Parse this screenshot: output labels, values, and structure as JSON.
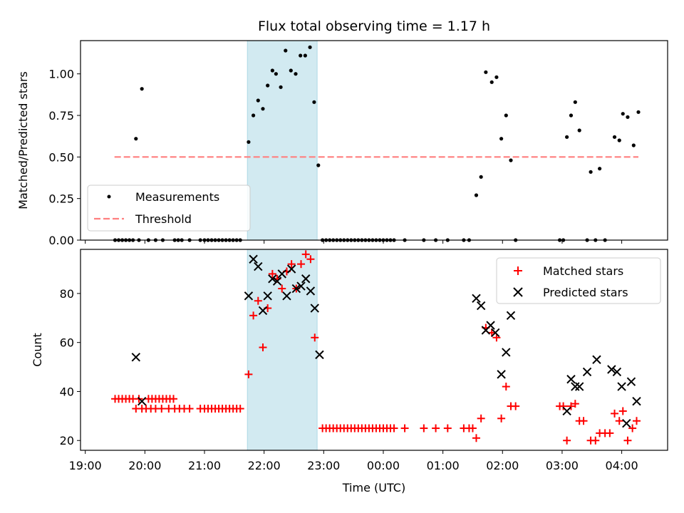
{
  "chart_data": {
    "title": "Flux total observing time = 1.17 h",
    "xlabel": "Time (UTC)",
    "x_units": "hours since 18:00 UTC",
    "xlim": [
      0.92,
      10.77
    ],
    "x_ticks": [
      {
        "x": 1,
        "label": "19:00"
      },
      {
        "x": 2,
        "label": "20:00"
      },
      {
        "x": 3,
        "label": "21:00"
      },
      {
        "x": 4,
        "label": "22:00"
      },
      {
        "x": 5,
        "label": "23:00"
      },
      {
        "x": 6,
        "label": "00:00"
      },
      {
        "x": 7,
        "label": "01:00"
      },
      {
        "x": 8,
        "label": "02:00"
      },
      {
        "x": 9,
        "label": "03:00"
      },
      {
        "x": 10,
        "label": "04:00"
      }
    ],
    "observing_window": {
      "start": 3.72,
      "end": 4.89,
      "color": "#add8e6"
    },
    "top": {
      "type": "scatter",
      "ylabel": "Matched/Predicted stars",
      "ylim": [
        0,
        1.2
      ],
      "y_ticks": [
        "0.00",
        "0.25",
        "0.50",
        "0.75",
        "1.00"
      ],
      "y_tick_values": [
        0,
        0.25,
        0.5,
        0.75,
        1.0
      ],
      "legend": {
        "position": "lower-left",
        "entries": [
          "Measurements",
          "Threshold"
        ]
      },
      "threshold": {
        "name": "Threshold",
        "value": 0.5,
        "x_range": [
          1.49,
          10.28
        ],
        "color": "#ff7f7f"
      },
      "series": [
        {
          "name": "Measurements",
          "color": "#000000",
          "points": [
            [
              1.5,
              0
            ],
            [
              1.56,
              0
            ],
            [
              1.62,
              0
            ],
            [
              1.68,
              0
            ],
            [
              1.74,
              0
            ],
            [
              1.8,
              0
            ],
            [
              1.9,
              0
            ],
            [
              2.06,
              0
            ],
            [
              2.18,
              0
            ],
            [
              2.3,
              0
            ],
            [
              2.5,
              0
            ],
            [
              2.56,
              0
            ],
            [
              2.62,
              0
            ],
            [
              2.75,
              0
            ],
            [
              2.93,
              0
            ],
            [
              3.0,
              0
            ],
            [
              3.06,
              0
            ],
            [
              3.12,
              0
            ],
            [
              3.18,
              0
            ],
            [
              3.24,
              0
            ],
            [
              3.3,
              0
            ],
            [
              3.36,
              0
            ],
            [
              3.42,
              0
            ],
            [
              3.48,
              0
            ],
            [
              3.54,
              0
            ],
            [
              3.6,
              0
            ],
            [
              1.85,
              0.61
            ],
            [
              1.95,
              0.91
            ],
            [
              3.74,
              0.59
            ],
            [
              3.82,
              0.75
            ],
            [
              3.9,
              0.84
            ],
            [
              3.98,
              0.79
            ],
            [
              4.06,
              0.93
            ],
            [
              4.14,
              1.02
            ],
            [
              4.2,
              1.0
            ],
            [
              4.28,
              0.92
            ],
            [
              4.36,
              1.14
            ],
            [
              4.45,
              1.02
            ],
            [
              4.53,
              1.0
            ],
            [
              4.61,
              1.11
            ],
            [
              4.69,
              1.11
            ],
            [
              4.77,
              1.16
            ],
            [
              4.84,
              0.83
            ],
            [
              4.91,
              0.45
            ],
            [
              4.98,
              0
            ],
            [
              5.04,
              0
            ],
            [
              5.1,
              0
            ],
            [
              5.16,
              0
            ],
            [
              5.22,
              0
            ],
            [
              5.28,
              0
            ],
            [
              5.34,
              0
            ],
            [
              5.4,
              0
            ],
            [
              5.46,
              0
            ],
            [
              5.52,
              0
            ],
            [
              5.58,
              0
            ],
            [
              5.64,
              0
            ],
            [
              5.7,
              0
            ],
            [
              5.76,
              0
            ],
            [
              5.82,
              0
            ],
            [
              5.88,
              0
            ],
            [
              5.94,
              0
            ],
            [
              6.0,
              0
            ],
            [
              6.06,
              0
            ],
            [
              6.12,
              0
            ],
            [
              6.18,
              0
            ],
            [
              6.36,
              0
            ],
            [
              6.68,
              0
            ],
            [
              6.88,
              0
            ],
            [
              7.08,
              0
            ],
            [
              7.35,
              0
            ],
            [
              7.44,
              0
            ],
            [
              7.56,
              0.27
            ],
            [
              7.64,
              0.38
            ],
            [
              7.72,
              1.01
            ],
            [
              7.82,
              0.95
            ],
            [
              7.9,
              0.98
            ],
            [
              7.98,
              0.61
            ],
            [
              8.06,
              0.75
            ],
            [
              8.14,
              0.48
            ],
            [
              8.22,
              0
            ],
            [
              8.96,
              0
            ],
            [
              9.02,
              0
            ],
            [
              9.08,
              0.62
            ],
            [
              9.15,
              0.75
            ],
            [
              9.22,
              0.83
            ],
            [
              9.29,
              0.66
            ],
            [
              9.42,
              0
            ],
            [
              9.48,
              0.41
            ],
            [
              9.56,
              0
            ],
            [
              9.63,
              0.43
            ],
            [
              9.72,
              0
            ],
            [
              9.88,
              0.62
            ],
            [
              9.96,
              0.6
            ],
            [
              10.02,
              0.76
            ],
            [
              10.1,
              0.74
            ],
            [
              10.2,
              0.57
            ],
            [
              10.28,
              0.77
            ]
          ]
        }
      ]
    },
    "bottom": {
      "type": "scatter",
      "ylabel": "Count",
      "ylim": [
        16,
        98
      ],
      "y_ticks": [
        "20",
        "40",
        "60",
        "80"
      ],
      "y_tick_values": [
        20,
        40,
        60,
        80
      ],
      "legend": {
        "position": "upper-right",
        "entries": [
          "Matched stars",
          "Predicted stars"
        ]
      },
      "series": [
        {
          "name": "Matched stars",
          "marker": "+",
          "color": "#ff0000",
          "points": [
            [
              1.5,
              37
            ],
            [
              1.56,
              37
            ],
            [
              1.62,
              37
            ],
            [
              1.68,
              37
            ],
            [
              1.74,
              37
            ],
            [
              1.8,
              37
            ],
            [
              1.9,
              37
            ],
            [
              2.06,
              37
            ],
            [
              2.12,
              37
            ],
            [
              2.18,
              37
            ],
            [
              2.24,
              37
            ],
            [
              2.3,
              37
            ],
            [
              2.36,
              37
            ],
            [
              2.42,
              37
            ],
            [
              2.48,
              37
            ],
            [
              1.85,
              33
            ],
            [
              1.95,
              33
            ],
            [
              2.02,
              33
            ],
            [
              2.1,
              33
            ],
            [
              2.18,
              33
            ],
            [
              2.28,
              33
            ],
            [
              2.4,
              33
            ],
            [
              2.5,
              33
            ],
            [
              2.58,
              33
            ],
            [
              2.66,
              33
            ],
            [
              2.75,
              33
            ],
            [
              2.93,
              33
            ],
            [
              3.0,
              33
            ],
            [
              3.06,
              33
            ],
            [
              3.12,
              33
            ],
            [
              3.18,
              33
            ],
            [
              3.24,
              33
            ],
            [
              3.3,
              33
            ],
            [
              3.36,
              33
            ],
            [
              3.42,
              33
            ],
            [
              3.48,
              33
            ],
            [
              3.54,
              33
            ],
            [
              3.6,
              33
            ],
            [
              3.74,
              47
            ],
            [
              3.82,
              71
            ],
            [
              3.9,
              77
            ],
            [
              3.98,
              58
            ],
            [
              4.06,
              74
            ],
            [
              4.14,
              88
            ],
            [
              4.22,
              86
            ],
            [
              4.3,
              82
            ],
            [
              4.38,
              89
            ],
            [
              4.46,
              92
            ],
            [
              4.54,
              82
            ],
            [
              4.62,
              92
            ],
            [
              4.7,
              96
            ],
            [
              4.78,
              94
            ],
            [
              4.85,
              62
            ],
            [
              4.98,
              25
            ],
            [
              5.04,
              25
            ],
            [
              5.1,
              25
            ],
            [
              5.16,
              25
            ],
            [
              5.22,
              25
            ],
            [
              5.28,
              25
            ],
            [
              5.34,
              25
            ],
            [
              5.4,
              25
            ],
            [
              5.46,
              25
            ],
            [
              5.52,
              25
            ],
            [
              5.58,
              25
            ],
            [
              5.64,
              25
            ],
            [
              5.7,
              25
            ],
            [
              5.76,
              25
            ],
            [
              5.82,
              25
            ],
            [
              5.88,
              25
            ],
            [
              5.94,
              25
            ],
            [
              6.0,
              25
            ],
            [
              6.06,
              25
            ],
            [
              6.12,
              25
            ],
            [
              6.18,
              25
            ],
            [
              6.36,
              25
            ],
            [
              6.68,
              25
            ],
            [
              6.88,
              25
            ],
            [
              7.08,
              25
            ],
            [
              7.35,
              25
            ],
            [
              7.44,
              25
            ],
            [
              7.5,
              25
            ],
            [
              7.56,
              21
            ],
            [
              7.64,
              29
            ],
            [
              7.72,
              66
            ],
            [
              7.82,
              64
            ],
            [
              7.9,
              62
            ],
            [
              7.98,
              29
            ],
            [
              8.06,
              42
            ],
            [
              8.14,
              34
            ],
            [
              8.22,
              34
            ],
            [
              8.96,
              34
            ],
            [
              9.02,
              34
            ],
            [
              9.08,
              20
            ],
            [
              9.15,
              34
            ],
            [
              9.22,
              35
            ],
            [
              9.29,
              28
            ],
            [
              9.36,
              28
            ],
            [
              9.48,
              20
            ],
            [
              9.56,
              20
            ],
            [
              9.63,
              23
            ],
            [
              9.72,
              23
            ],
            [
              9.8,
              23
            ],
            [
              9.88,
              31
            ],
            [
              9.96,
              28
            ],
            [
              10.02,
              32
            ],
            [
              10.1,
              20
            ],
            [
              10.18,
              25
            ],
            [
              10.25,
              28
            ]
          ]
        },
        {
          "name": "Predicted stars",
          "marker": "x",
          "color": "#000000",
          "points": [
            [
              1.85,
              54
            ],
            [
              1.95,
              36
            ],
            [
              3.74,
              79
            ],
            [
              3.82,
              94
            ],
            [
              3.9,
              91
            ],
            [
              3.98,
              73
            ],
            [
              4.06,
              79
            ],
            [
              4.14,
              86
            ],
            [
              4.22,
              85
            ],
            [
              4.3,
              88
            ],
            [
              4.38,
              79
            ],
            [
              4.46,
              90
            ],
            [
              4.54,
              82
            ],
            [
              4.62,
              83
            ],
            [
              4.7,
              86
            ],
            [
              4.78,
              81
            ],
            [
              4.85,
              74
            ],
            [
              4.93,
              55
            ],
            [
              7.56,
              78
            ],
            [
              7.64,
              75
            ],
            [
              7.72,
              65
            ],
            [
              7.8,
              67
            ],
            [
              7.88,
              64
            ],
            [
              7.98,
              47
            ],
            [
              8.06,
              56
            ],
            [
              8.14,
              71
            ],
            [
              9.08,
              32
            ],
            [
              9.15,
              45
            ],
            [
              9.22,
              42
            ],
            [
              9.29,
              42
            ],
            [
              9.42,
              48
            ],
            [
              9.58,
              53
            ],
            [
              9.83,
              49
            ],
            [
              9.92,
              48
            ],
            [
              10.0,
              42
            ],
            [
              10.08,
              27
            ],
            [
              10.16,
              44
            ],
            [
              10.25,
              36
            ]
          ]
        }
      ]
    }
  }
}
